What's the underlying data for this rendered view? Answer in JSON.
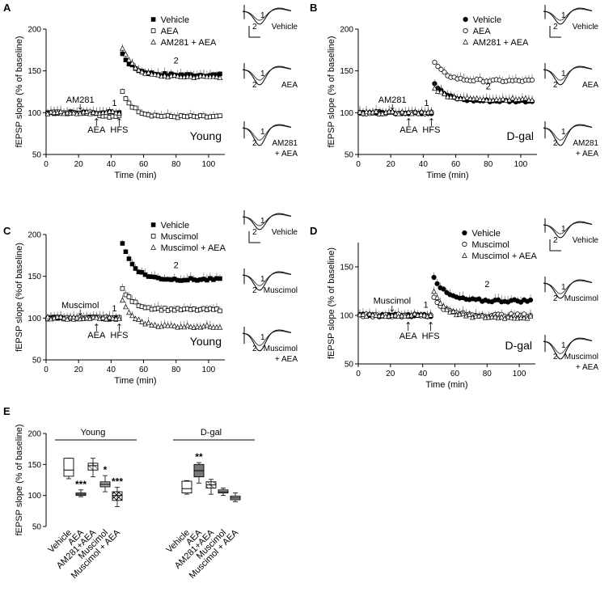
{
  "chart_data": [
    {
      "panel": "A",
      "type": "scatter",
      "ylabel": "fEPSP slope (% of baseline)",
      "xlabel": "Time (min)",
      "xlim": [
        0,
        110
      ],
      "ylim": [
        50,
        200
      ],
      "xticks": [
        0,
        20,
        40,
        60,
        80,
        100
      ],
      "yticks": [
        50,
        100,
        150,
        200
      ],
      "group_label": "Young",
      "legend": [
        "Vehicle",
        "AEA",
        "AM281 + AEA"
      ],
      "annotations": {
        "drug1": "AM281",
        "drug2": "AEA",
        "stim": "HFS",
        "early": "1",
        "late": "2"
      },
      "traces": [
        "Vehicle",
        "AEA",
        "AM281\n+ AEA"
      ],
      "series": [
        {
          "name": "Vehicle",
          "marker": "filled-square",
          "start": 140,
          "peak": 170,
          "plateau": 145
        },
        {
          "name": "AEA",
          "marker": "open-square",
          "start": 96,
          "peak": 125,
          "plateau": 95
        },
        {
          "name": "AM281 + AEA",
          "marker": "open-triangle",
          "start": 140,
          "peak": 178,
          "plateau": 143
        }
      ]
    },
    {
      "panel": "B",
      "type": "scatter",
      "ylabel": "fEPSP slope (% of baseline)",
      "xlabel": "Time (min)",
      "xlim": [
        0,
        110
      ],
      "ylim": [
        50,
        200
      ],
      "xticks": [
        0,
        20,
        40,
        60,
        80,
        100
      ],
      "yticks": [
        50,
        100,
        150,
        200
      ],
      "group_label": "D-gal",
      "legend": [
        "Vehicle",
        "AEA",
        "AM281 + AEA"
      ],
      "annotations": {
        "drug1": "AM281",
        "drug2": "AEA",
        "stim": "HFS",
        "early": "1",
        "late": "2"
      },
      "traces": [
        "Vehicle",
        "AEA",
        "AM281\n+ AEA"
      ],
      "series": [
        {
          "name": "Vehicle",
          "marker": "filled-circle",
          "peak": 135,
          "plateau": 114
        },
        {
          "name": "AEA",
          "marker": "open-circle",
          "peak": 160,
          "plateau": 138
        },
        {
          "name": "AM281 + AEA",
          "marker": "open-triangle",
          "peak": 130,
          "plateau": 116
        }
      ]
    },
    {
      "panel": "C",
      "type": "scatter",
      "ylabel": "fEPSP slope (%of baseline)",
      "xlabel": "Time (min)",
      "xlim": [
        0,
        110
      ],
      "ylim": [
        50,
        200
      ],
      "xticks": [
        0,
        20,
        40,
        60,
        80,
        100
      ],
      "yticks": [
        50,
        100,
        150,
        200
      ],
      "group_label": "Young",
      "legend": [
        "Vehicle",
        "Muscimol",
        "Muscimol + AEA"
      ],
      "annotations": {
        "drug1": "Muscimol",
        "drug2": "AEA",
        "stim": "HFS",
        "early": "1",
        "late": "2"
      },
      "traces": [
        "Vehicle",
        "Muscimol",
        "Muscimol\n+ AEA"
      ],
      "series": [
        {
          "name": "Vehicle",
          "marker": "filled-square",
          "peak": 190,
          "plateau": 146
        },
        {
          "name": "Muscimol",
          "marker": "open-square",
          "peak": 135,
          "plateau": 110
        },
        {
          "name": "Muscimol + AEA",
          "marker": "open-triangle",
          "peak": 120,
          "plateau": 90
        }
      ]
    },
    {
      "panel": "D",
      "type": "scatter",
      "ylabel": "fEPSP slope (% of baseline)",
      "xlabel": "Time (min)",
      "xlim": [
        0,
        110
      ],
      "ylim": [
        50,
        175
      ],
      "xticks": [
        0,
        20,
        40,
        60,
        80,
        100
      ],
      "yticks": [
        50,
        100,
        150
      ],
      "group_label": "D-gal",
      "legend": [
        "Vehicle",
        "Muscimol",
        "Muscimol + AEA"
      ],
      "annotations": {
        "drug1": "Muscimol",
        "drug2": "AEA",
        "stim": "HFS",
        "early": "1",
        "late": "2"
      },
      "traces": [
        "Vehicle",
        "Muscimol",
        "Muscimol\n+ AEA"
      ],
      "series": [
        {
          "name": "Vehicle",
          "marker": "filled-circle",
          "peak": 140,
          "plateau": 115
        },
        {
          "name": "Muscimol",
          "marker": "open-circle",
          "peak": 118,
          "plateau": 100
        },
        {
          "name": "Muscimol + AEA",
          "marker": "open-triangle",
          "peak": 125,
          "plateau": 98
        }
      ]
    },
    {
      "panel": "E",
      "type": "box",
      "ylabel": "fEPSP slope (% of baseline)",
      "ylim": [
        50,
        200
      ],
      "yticks": [
        50,
        100,
        150,
        200
      ],
      "groups": [
        {
          "label": "Young",
          "categories": [
            "Vehicle",
            "AEA",
            "AM281+AEA",
            "Muscimol",
            "Muscimol + AEA"
          ]
        },
        {
          "label": "D-gal",
          "categories": [
            "Vehicle",
            "AEA",
            "AM281+AEA",
            "Muscimol",
            "Muscimol + AEA"
          ]
        }
      ],
      "boxes": [
        {
          "group": "Young",
          "category": "Vehicle",
          "wlo": 127,
          "q1": 131,
          "med": 141,
          "q3": 160,
          "whi": 160,
          "fill": "white",
          "sig": ""
        },
        {
          "group": "Young",
          "category": "AEA",
          "wlo": 98,
          "q1": 100,
          "med": 102,
          "q3": 104,
          "whi": 109,
          "fill": "gray",
          "sig": "***"
        },
        {
          "group": "Young",
          "category": "AM281+AEA",
          "wlo": 130,
          "q1": 141,
          "med": 148,
          "q3": 152,
          "whi": 160,
          "fill": "hatch",
          "sig": ""
        },
        {
          "group": "Young",
          "category": "Muscimol",
          "wlo": 106,
          "q1": 114,
          "med": 118,
          "q3": 122,
          "whi": 132,
          "fill": "gray",
          "sig": "*"
        },
        {
          "group": "Young",
          "category": "Muscimol + AEA",
          "wlo": 82,
          "q1": 92,
          "med": 100,
          "q3": 106,
          "whi": 113,
          "fill": "cross",
          "sig": "***"
        },
        {
          "group": "D-gal",
          "category": "Vehicle",
          "wlo": 102,
          "q1": 104,
          "med": 111,
          "q3": 123,
          "whi": 124,
          "fill": "white",
          "sig": ""
        },
        {
          "group": "D-gal",
          "category": "AEA",
          "wlo": 120,
          "q1": 130,
          "med": 140,
          "q3": 150,
          "whi": 153,
          "fill": "darkgray",
          "sig": "**"
        },
        {
          "group": "D-gal",
          "category": "AM281+AEA",
          "wlo": 102,
          "q1": 112,
          "med": 117,
          "q3": 122,
          "whi": 126,
          "fill": "hatch",
          "sig": ""
        },
        {
          "group": "D-gal",
          "category": "Muscimol",
          "wlo": 100,
          "q1": 104,
          "med": 106,
          "q3": 109,
          "whi": 112,
          "fill": "gray",
          "sig": ""
        },
        {
          "group": "D-gal",
          "category": "Muscimol + AEA",
          "wlo": 90,
          "q1": 93,
          "med": 96,
          "q3": 99,
          "whi": 104,
          "fill": "gray",
          "sig": ""
        }
      ]
    }
  ]
}
